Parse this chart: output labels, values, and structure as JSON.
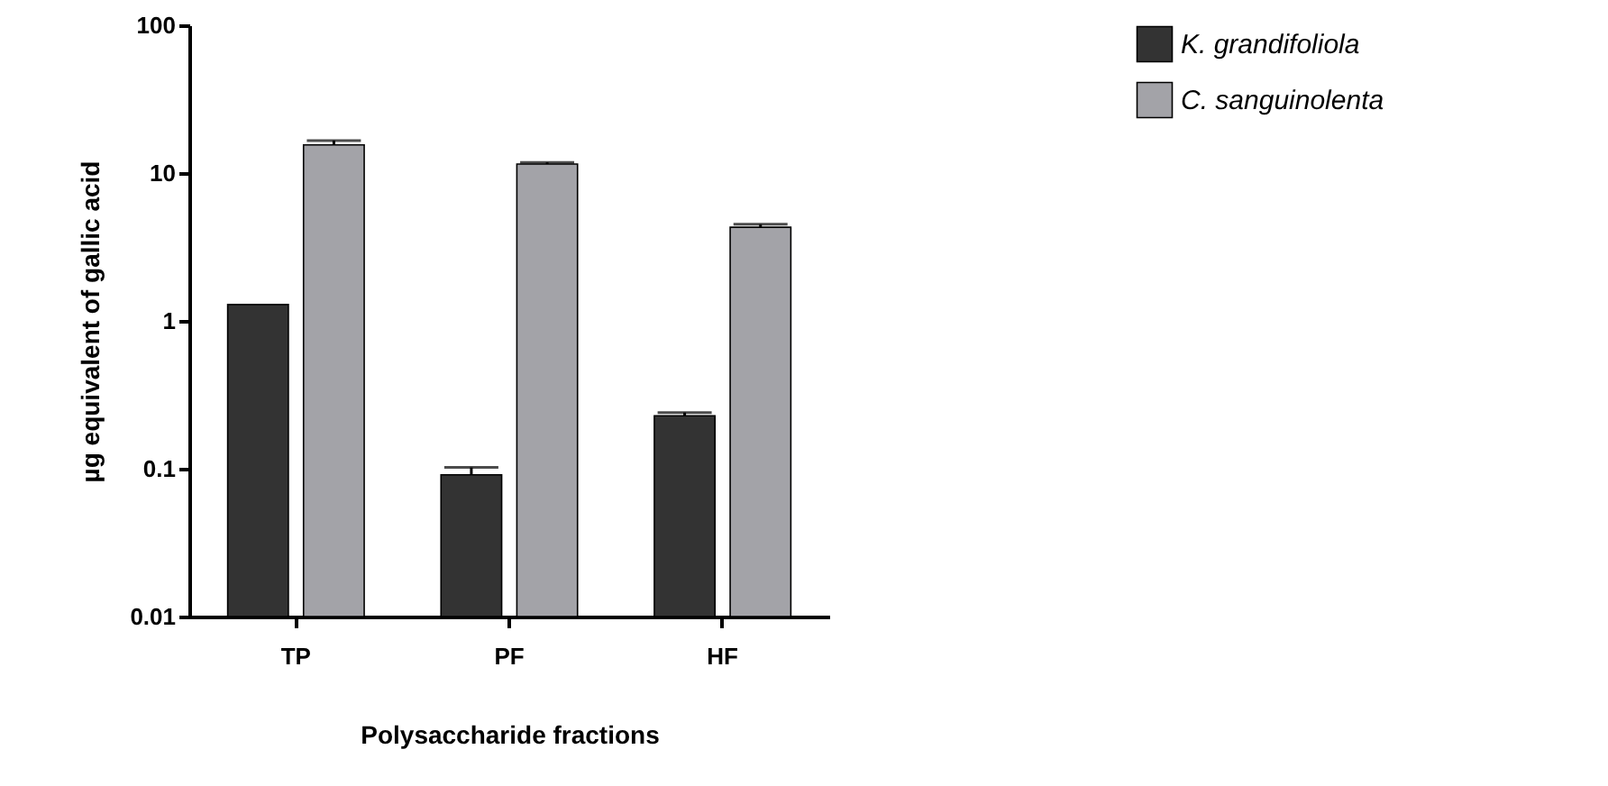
{
  "chart_data": {
    "type": "bar",
    "xlabel": "Polysaccharide fractions",
    "ylabel": "µg equivalent of gallic acid",
    "categories": [
      "TP",
      "PF",
      "HF"
    ],
    "series": [
      {
        "name": "K. grandifoliola",
        "color": "#333333",
        "values": [
          1.29,
          0.091,
          0.228
        ],
        "errors": [
          null,
          [
            0.091,
            0.102
          ],
          [
            0.228,
            0.24
          ]
        ]
      },
      {
        "name": "C. sanguinolenta",
        "color": "#a3a3a8",
        "values": [
          15.5,
          11.5,
          4.3
        ],
        "errors": [
          [
            15.5,
            16.6
          ],
          [
            11.5,
            11.8
          ],
          [
            4.3,
            4.5
          ]
        ]
      }
    ],
    "log": true,
    "ylim": [
      0.01,
      100
    ],
    "yticks": [
      0.01,
      0.1,
      1,
      10,
      100
    ],
    "grid": false,
    "legend": "right"
  }
}
